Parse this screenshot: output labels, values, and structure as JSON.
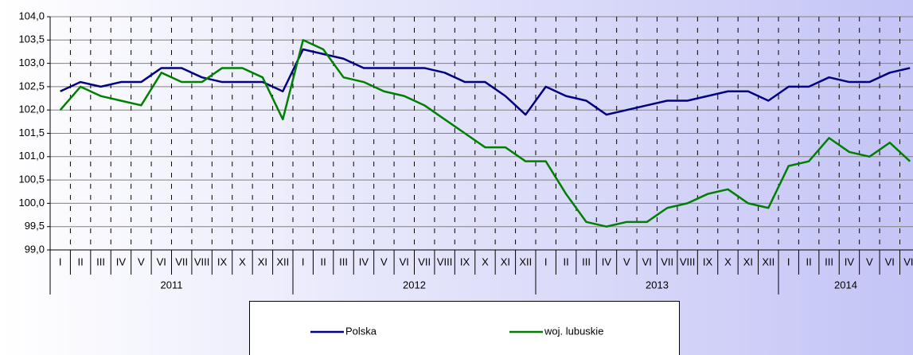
{
  "chart_data": {
    "type": "line",
    "categories": [
      "I",
      "II",
      "III",
      "IV",
      "V",
      "VI",
      "VII",
      "VIII",
      "IX",
      "X",
      "XI",
      "XII",
      "I",
      "II",
      "III",
      "IV",
      "V",
      "VI",
      "VII",
      "VIII",
      "IX",
      "X",
      "XI",
      "XII",
      "I",
      "II",
      "III",
      "IV",
      "V",
      "VI",
      "VII",
      "VIII",
      "IX",
      "X",
      "XI",
      "XII",
      "I",
      "II",
      "III",
      "IV",
      "V",
      "VI",
      "VII"
    ],
    "years": [
      "2011",
      "2012",
      "2013",
      "2014"
    ],
    "series": [
      {
        "name": "Polska",
        "color": "#000080",
        "values": [
          102.4,
          102.6,
          102.5,
          102.6,
          102.6,
          102.9,
          102.9,
          102.7,
          102.6,
          102.6,
          102.6,
          102.4,
          103.3,
          103.2,
          103.1,
          102.9,
          102.9,
          102.9,
          102.9,
          102.8,
          102.6,
          102.6,
          102.3,
          101.9,
          102.5,
          102.3,
          102.2,
          101.9,
          102.0,
          102.1,
          102.2,
          102.2,
          102.3,
          102.4,
          102.4,
          102.2,
          102.5,
          102.5,
          102.7,
          102.6,
          102.6,
          102.8,
          102.9
        ]
      },
      {
        "name": "woj. lubuskie",
        "color": "#008000",
        "values": [
          102.0,
          102.5,
          102.3,
          102.2,
          102.1,
          102.8,
          102.6,
          102.6,
          102.9,
          102.9,
          102.7,
          101.8,
          103.5,
          103.3,
          102.7,
          102.6,
          102.4,
          102.3,
          102.1,
          101.8,
          101.5,
          101.2,
          101.2,
          100.9,
          100.9,
          100.2,
          99.6,
          99.5,
          99.6,
          99.6,
          99.9,
          100.0,
          100.2,
          100.3,
          100.0,
          99.9,
          100.8,
          100.9,
          101.4,
          101.1,
          101.0,
          101.3,
          100.9
        ]
      }
    ],
    "ylim": [
      99.0,
      104.0
    ],
    "yticks": [
      {
        "value": 99.0,
        "label": "99,0"
      },
      {
        "value": 99.5,
        "label": "99,5"
      },
      {
        "value": 100.0,
        "label": "100,0"
      },
      {
        "value": 100.5,
        "label": "100,5"
      },
      {
        "value": 101.0,
        "label": "101,0"
      },
      {
        "value": 101.5,
        "label": "101,5"
      },
      {
        "value": 102.0,
        "label": "102,0"
      },
      {
        "value": 102.5,
        "label": "102,5"
      },
      {
        "value": 103.0,
        "label": "103,0"
      },
      {
        "value": 103.5,
        "label": "103,5"
      },
      {
        "value": 104.0,
        "label": "104,0"
      }
    ],
    "grid": true,
    "legend": "bottom"
  }
}
